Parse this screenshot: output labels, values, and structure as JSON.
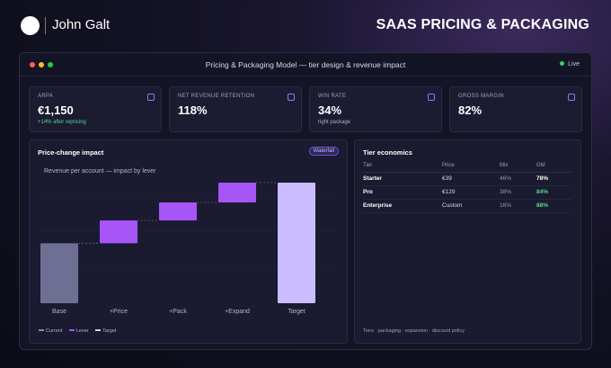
{
  "brand": {
    "name": "John Galt",
    "logo_icon": "circle-logo-icon"
  },
  "page_heading": "SAAS PRICING & PACKAGING",
  "window": {
    "title": "Pricing & Packaging Model — tier design & revenue impact",
    "status": "Live",
    "status_color": "#3ecf6a"
  },
  "kpis": [
    {
      "label": "ARPA",
      "value": "€1,150",
      "sub": "+14% after repricing",
      "sub_positive": true
    },
    {
      "label": "NET REVENUE RETENTION",
      "value": "118%",
      "sub": "",
      "sub_positive": false
    },
    {
      "label": "WIN RATE",
      "value": "34%",
      "sub": "right package",
      "sub_positive": false
    },
    {
      "label": "GROSS MARGIN",
      "value": "82%",
      "sub": "",
      "sub_positive": false
    }
  ],
  "chart_panel": {
    "title": "Price-change impact",
    "badge": "Waterfall",
    "subtitle": "Revenue per account — impact by lever",
    "legend": [
      {
        "label": "Current",
        "color": "#8a8aa8"
      },
      {
        "label": "Lever",
        "color": "#a855f7"
      },
      {
        "label": "Target",
        "color": "#d9ccff"
      }
    ]
  },
  "chart_data": {
    "type": "bar",
    "subtype": "waterfall",
    "categories": [
      "Base",
      "+Price",
      "+Pack",
      "+Expand",
      "Target"
    ],
    "values": [
      100,
      38,
      30,
      33,
      201
    ],
    "kinds": [
      "current",
      "lever",
      "lever",
      "lever",
      "target"
    ],
    "ylim": [
      0,
      240
    ],
    "grid": true,
    "legend_position": "bottom-left",
    "colors": {
      "current": "#6f6f94",
      "lever": "#a855f7",
      "target": "#cbbcff"
    }
  },
  "table_panel": {
    "title": "Tier economics",
    "columns": [
      "Tier",
      "Price",
      "Mix",
      "GM"
    ],
    "rows": [
      {
        "tier": "Starter",
        "price": "€39",
        "mix": "46%",
        "gm": "78%",
        "gm_good": false
      },
      {
        "tier": "Pro",
        "price": "€129",
        "mix": "38%",
        "gm": "84%",
        "gm_good": true
      },
      {
        "tier": "Enterprise",
        "price": "Custom",
        "mix": "16%",
        "gm": "88%",
        "gm_good": true
      }
    ],
    "footer": "Tiers · packaging · expansion · discount policy"
  }
}
